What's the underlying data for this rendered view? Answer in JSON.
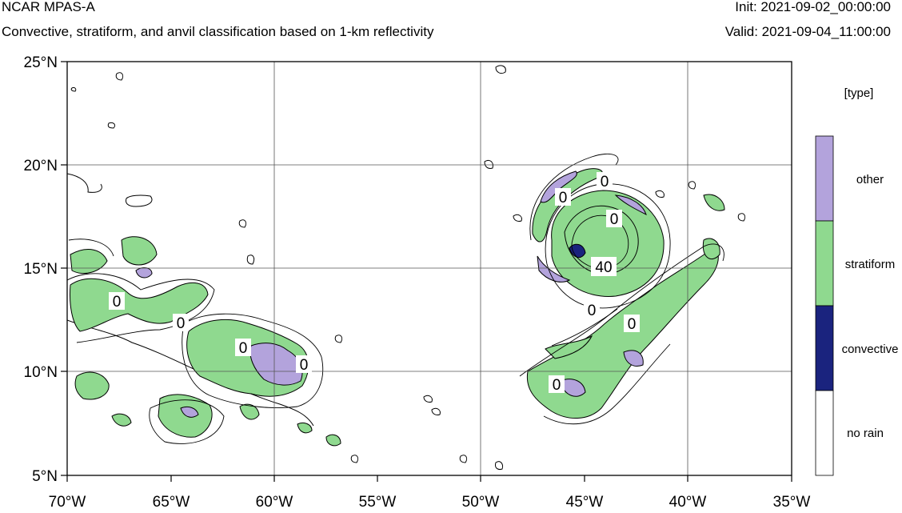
{
  "header": {
    "title": "NCAR MPAS-A",
    "subtitle": "Convective, stratiform, and anvil classification based on 1-km reflectivity",
    "init": "Init: 2021-09-02_00:00:00",
    "valid": "Valid: 2021-09-04_11:00:00"
  },
  "map": {
    "lon_range": [
      -70,
      -35
    ],
    "lat_range": [
      5,
      25
    ],
    "lon_ticks": [
      "70°W",
      "65°W",
      "60°W",
      "55°W",
      "50°W",
      "45°W",
      "40°W",
      "35°W"
    ],
    "lat_ticks": [
      "25°N",
      "20°N",
      "15°N",
      "10°N",
      "5°N"
    ],
    "contour_labels": [
      "0",
      "0",
      "0",
      "0",
      "0",
      "0",
      "0",
      "40",
      "0",
      "0"
    ],
    "colors": {
      "other": "#b3a3dc",
      "stratiform": "#8fd98f",
      "convective": "#1a237e",
      "no_rain": "#ffffff"
    }
  },
  "legend": {
    "title": "[type]",
    "items": [
      "other",
      "stratiform",
      "convective",
      "no rain"
    ]
  }
}
